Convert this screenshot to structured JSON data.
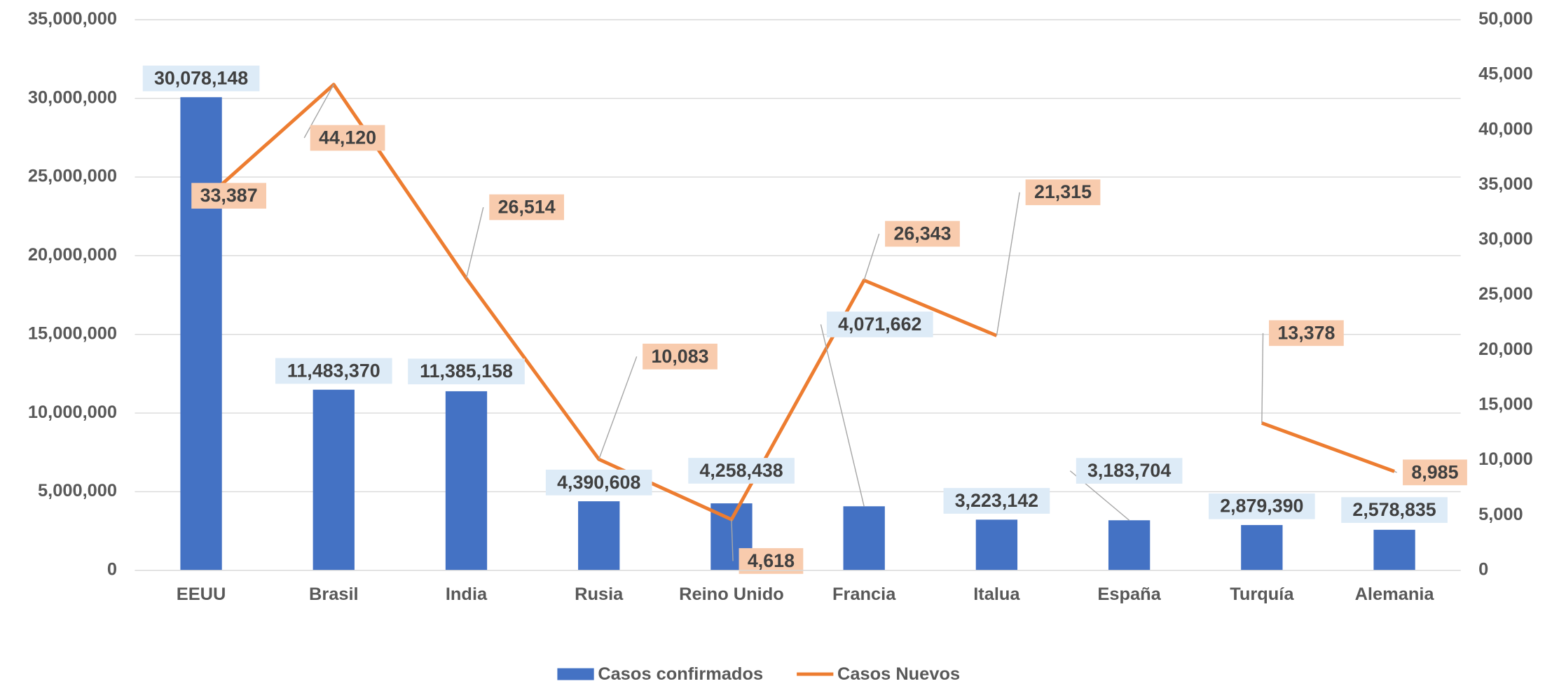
{
  "chart_data": {
    "type": "bar_line",
    "categories": [
      "EEUU",
      "Brasil",
      "India",
      "Rusia",
      "Reino Unido",
      "Francia",
      "Italua",
      "España",
      "Turquía",
      "Alemania"
    ],
    "series": [
      {
        "name": "Casos confirmados",
        "type": "bar",
        "color": "#4472c4",
        "values": [
          30078148,
          11483370,
          11385158,
          4390608,
          4258438,
          4071662,
          3223142,
          3183704,
          2879390,
          2578835
        ],
        "value_labels": [
          "30,078,148",
          "11,483,370",
          "11,385,158",
          "4,390,608",
          "4,258,438",
          "4,071,662",
          "3,223,142",
          "3,183,704",
          "2,879,390",
          "2,578,835"
        ]
      },
      {
        "name": "Casos Nuevos",
        "type": "line",
        "axis": "y2",
        "color": "#ed7d31",
        "values": [
          33387,
          44120,
          26514,
          10083,
          4618,
          26343,
          21315,
          null,
          13378,
          8985
        ],
        "value_labels": [
          "33,387",
          "44,120",
          "26,514",
          "10,083",
          "4,618",
          "26,343",
          "21,315",
          null,
          "13,378",
          "8,985"
        ]
      }
    ],
    "ylim": [
      0,
      35000000
    ],
    "yticks": [
      0,
      {
        "value": 5000000,
        "label": "5,000,000"
      },
      {
        "value": 10000000,
        "label": "10,000,000"
      },
      {
        "value": 15000000,
        "label": "15,000,000"
      },
      {
        "value": 20000000,
        "label": "20,000,000"
      },
      {
        "value": 25000000,
        "label": "25,000,000"
      },
      {
        "value": 30000000,
        "label": "30,000,000"
      },
      {
        "value": 35000000,
        "label": "35,000,000"
      }
    ],
    "y2lim": [
      0,
      50000
    ],
    "y2ticks": [
      0,
      {
        "value": 5000,
        "label": "5,000"
      },
      {
        "value": 10000,
        "label": "10,000"
      },
      {
        "value": 15000,
        "label": "15,000"
      },
      {
        "value": 20000,
        "label": "20,000"
      },
      {
        "value": 25000,
        "label": "25,000"
      },
      {
        "value": 30000,
        "label": "30,000"
      },
      {
        "value": 35000,
        "label": "35,000"
      },
      {
        "value": 40000,
        "label": "40,000"
      },
      {
        "value": 45000,
        "label": "45,000"
      },
      {
        "value": 50000,
        "label": "50,000"
      }
    ],
    "grid": true,
    "legend": "bottom"
  }
}
